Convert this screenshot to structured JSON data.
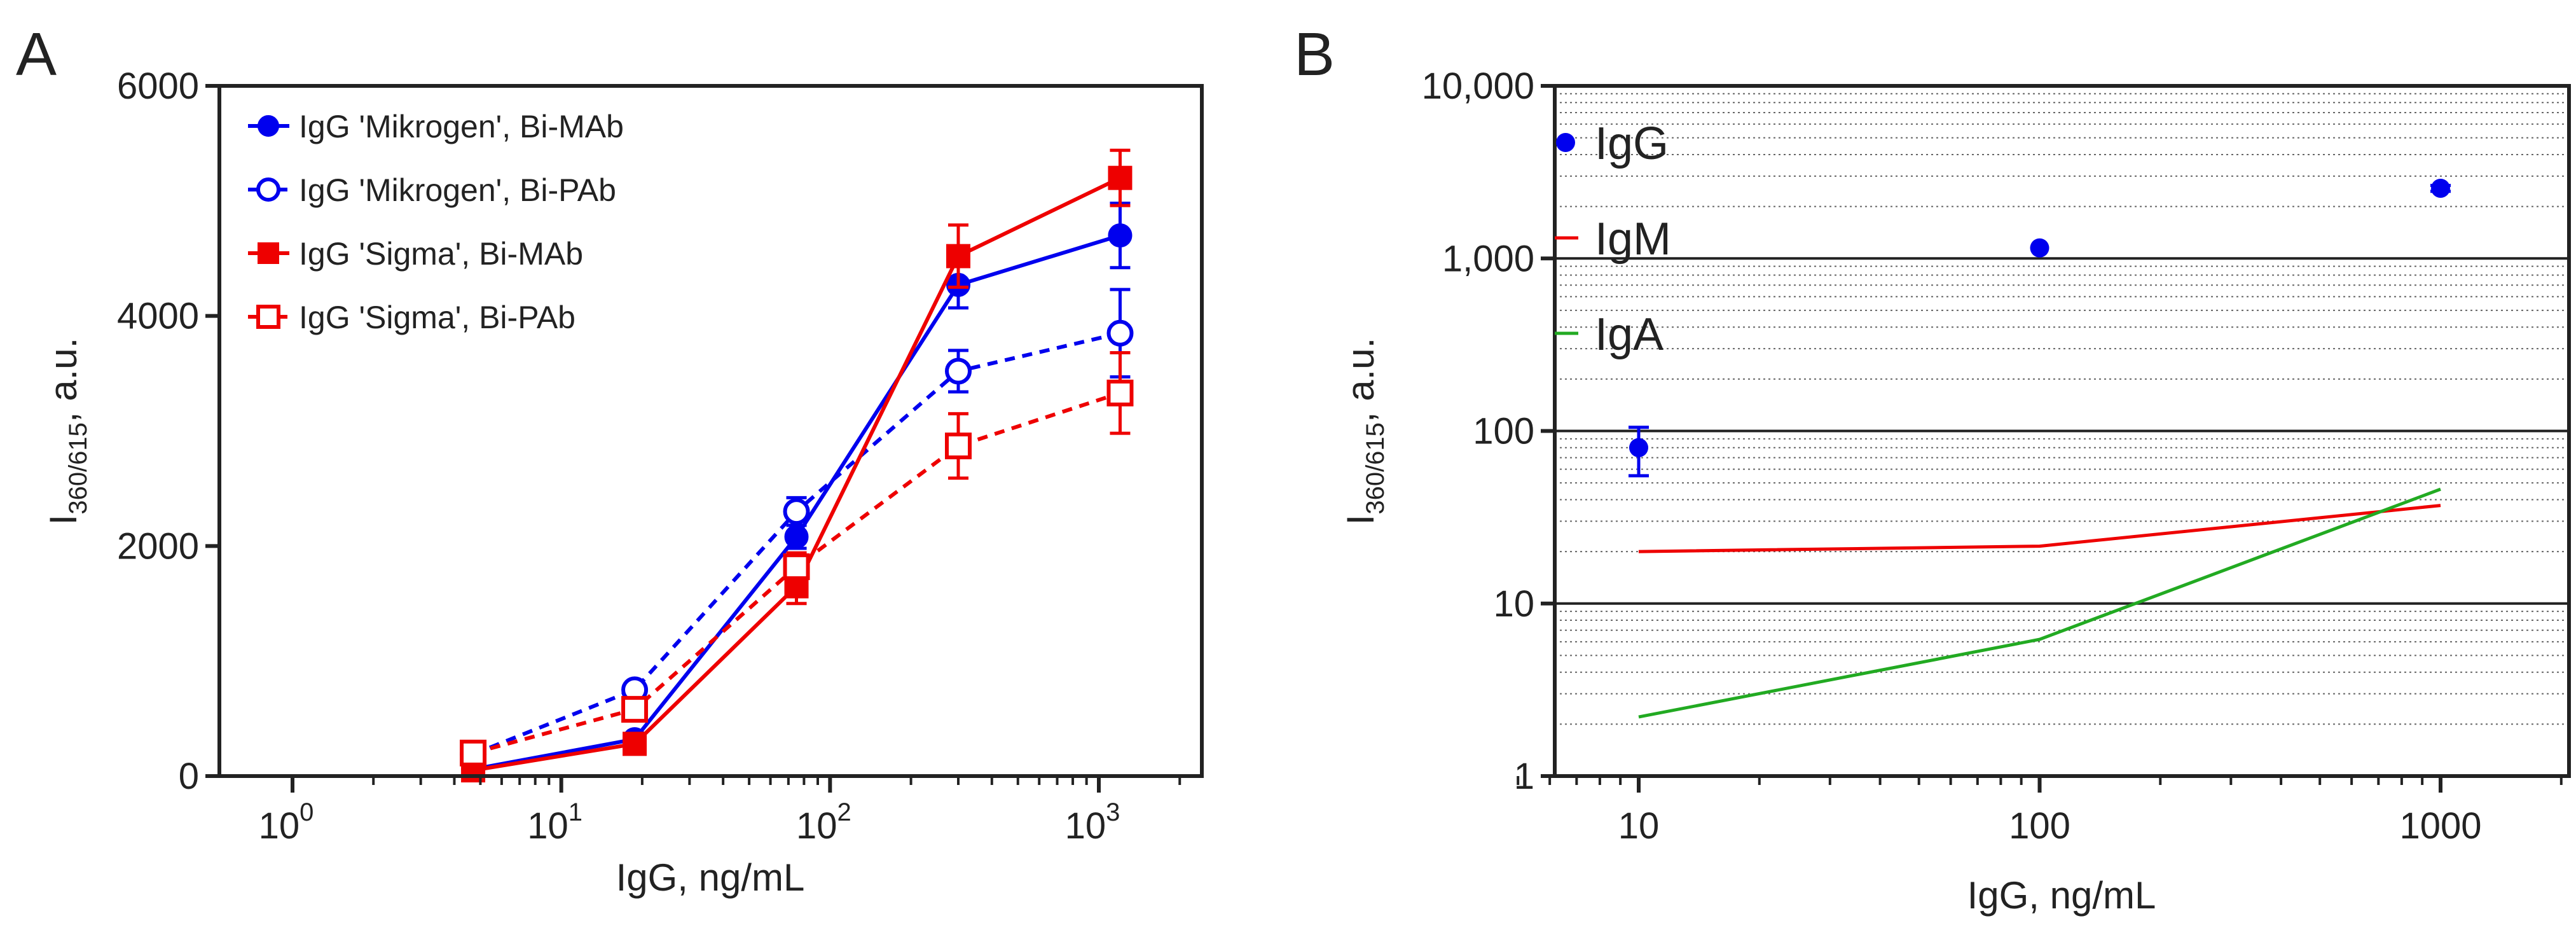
{
  "chart_data": [
    {
      "id": "A",
      "panel_label": "A",
      "type": "line",
      "xscale": "log",
      "xlim": [
        0.5,
        2000
      ],
      "ylim": [
        0,
        6000
      ],
      "xlabel": "IgG, ng/mL",
      "ylabel_main": "I",
      "ylabel_sub": "360/615",
      "ylabel_tail": ", a.u.",
      "xticks": [
        {
          "value": 1,
          "base": "10",
          "exp": "0"
        },
        {
          "value": 10,
          "base": "10",
          "exp": "1"
        },
        {
          "value": 100,
          "base": "10",
          "exp": "2"
        },
        {
          "value": 1000,
          "base": "10",
          "exp": "3"
        }
      ],
      "yticks": [
        {
          "value": 0,
          "label": "0"
        },
        {
          "value": 2000,
          "label": "2000"
        },
        {
          "value": 4000,
          "label": "4000"
        },
        {
          "value": 6000,
          "label": "6000"
        }
      ],
      "legend_position": "top-left",
      "series": [
        {
          "name": "IgG 'Mikrogen', Bi-MAb",
          "color": "#0000ee",
          "marker": "circle",
          "filled": true,
          "dash": false,
          "x": [
            4.7,
            18.75,
            75,
            300,
            1200
          ],
          "y": [
            60,
            320,
            2080,
            4270,
            4700
          ],
          "err": [
            20,
            40,
            100,
            200,
            280
          ]
        },
        {
          "name": "IgG 'Mikrogen', Bi-PAb",
          "color": "#0000ee",
          "marker": "circle",
          "filled": false,
          "dash": true,
          "x": [
            4.7,
            18.75,
            75,
            300,
            1200
          ],
          "y": [
            190,
            750,
            2300,
            3520,
            3850
          ],
          "err": [
            40,
            60,
            120,
            180,
            380
          ]
        },
        {
          "name": "IgG 'Sigma', Bi-MAb",
          "color": "#ee0000",
          "marker": "square",
          "filled": true,
          "dash": false,
          "x": [
            4.7,
            18.75,
            75,
            300,
            1200
          ],
          "y": [
            50,
            280,
            1650,
            4520,
            5200
          ],
          "err": [
            20,
            40,
            150,
            270,
            240
          ]
        },
        {
          "name": "IgG 'Sigma', Bi-PAb",
          "color": "#ee0000",
          "marker": "square",
          "filled": false,
          "dash": true,
          "x": [
            4.7,
            18.75,
            75,
            300,
            1200
          ],
          "y": [
            200,
            580,
            1820,
            2870,
            3330
          ],
          "err": [
            40,
            50,
            120,
            280,
            350
          ]
        }
      ]
    },
    {
      "id": "B",
      "panel_label": "B",
      "type": "line",
      "xscale": "log",
      "yscale": "log",
      "xlim": [
        5,
        2000
      ],
      "ylim": [
        1,
        10000
      ],
      "xlabel": "IgG, ng/mL",
      "ylabel_main": "I",
      "ylabel_sub": "360/615",
      "ylabel_tail": ", a.u.",
      "xticks": [
        {
          "value": 10,
          "label": "10"
        },
        {
          "value": 100,
          "label": "100"
        },
        {
          "value": 1000,
          "label": "1000"
        }
      ],
      "yticks": [
        {
          "value": 1,
          "label": "1"
        },
        {
          "value": 10,
          "label": "10"
        },
        {
          "value": 100,
          "label": "100"
        },
        {
          "value": 1000,
          "label": "1,000"
        },
        {
          "value": 10000,
          "label": "10,000"
        }
      ],
      "legend_position": "top-left",
      "series": [
        {
          "name": "IgG",
          "color": "#0000ee",
          "kind": "points",
          "x": [
            10,
            100,
            1000
          ],
          "y": [
            80,
            1150,
            2550
          ],
          "err_low": [
            55,
            1150,
            2450
          ],
          "err_high": [
            105,
            1150,
            2650
          ]
        },
        {
          "name": "IgM",
          "color": "#ee0000",
          "kind": "line",
          "x": [
            10,
            100,
            1000
          ],
          "y": [
            20,
            21.5,
            37
          ]
        },
        {
          "name": "IgA",
          "color": "#22aa22",
          "kind": "line",
          "x": [
            10,
            100,
            1000
          ],
          "y": [
            2.2,
            6.2,
            46
          ]
        }
      ]
    }
  ]
}
